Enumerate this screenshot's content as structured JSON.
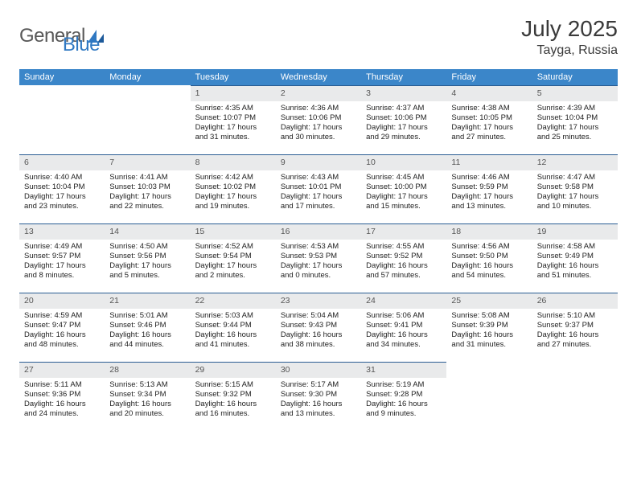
{
  "brand": {
    "name1": "General",
    "name2": "Blue"
  },
  "title": {
    "month": "July 2025",
    "location": "Tayga, Russia"
  },
  "colors": {
    "header_bg": "#3b86c9",
    "header_text": "#ffffff",
    "daynum_bg": "#e9eaeb",
    "rule": "#2a5d93",
    "brand_gray": "#585858",
    "brand_blue": "#2f78c2"
  },
  "weekdays": [
    "Sunday",
    "Monday",
    "Tuesday",
    "Wednesday",
    "Thursday",
    "Friday",
    "Saturday"
  ],
  "weeks": [
    [
      null,
      null,
      {
        "n": "1",
        "sr": "Sunrise: 4:35 AM",
        "ss": "Sunset: 10:07 PM",
        "dl": "Daylight: 17 hours and 31 minutes."
      },
      {
        "n": "2",
        "sr": "Sunrise: 4:36 AM",
        "ss": "Sunset: 10:06 PM",
        "dl": "Daylight: 17 hours and 30 minutes."
      },
      {
        "n": "3",
        "sr": "Sunrise: 4:37 AM",
        "ss": "Sunset: 10:06 PM",
        "dl": "Daylight: 17 hours and 29 minutes."
      },
      {
        "n": "4",
        "sr": "Sunrise: 4:38 AM",
        "ss": "Sunset: 10:05 PM",
        "dl": "Daylight: 17 hours and 27 minutes."
      },
      {
        "n": "5",
        "sr": "Sunrise: 4:39 AM",
        "ss": "Sunset: 10:04 PM",
        "dl": "Daylight: 17 hours and 25 minutes."
      }
    ],
    [
      {
        "n": "6",
        "sr": "Sunrise: 4:40 AM",
        "ss": "Sunset: 10:04 PM",
        "dl": "Daylight: 17 hours and 23 minutes."
      },
      {
        "n": "7",
        "sr": "Sunrise: 4:41 AM",
        "ss": "Sunset: 10:03 PM",
        "dl": "Daylight: 17 hours and 22 minutes."
      },
      {
        "n": "8",
        "sr": "Sunrise: 4:42 AM",
        "ss": "Sunset: 10:02 PM",
        "dl": "Daylight: 17 hours and 19 minutes."
      },
      {
        "n": "9",
        "sr": "Sunrise: 4:43 AM",
        "ss": "Sunset: 10:01 PM",
        "dl": "Daylight: 17 hours and 17 minutes."
      },
      {
        "n": "10",
        "sr": "Sunrise: 4:45 AM",
        "ss": "Sunset: 10:00 PM",
        "dl": "Daylight: 17 hours and 15 minutes."
      },
      {
        "n": "11",
        "sr": "Sunrise: 4:46 AM",
        "ss": "Sunset: 9:59 PM",
        "dl": "Daylight: 17 hours and 13 minutes."
      },
      {
        "n": "12",
        "sr": "Sunrise: 4:47 AM",
        "ss": "Sunset: 9:58 PM",
        "dl": "Daylight: 17 hours and 10 minutes."
      }
    ],
    [
      {
        "n": "13",
        "sr": "Sunrise: 4:49 AM",
        "ss": "Sunset: 9:57 PM",
        "dl": "Daylight: 17 hours and 8 minutes."
      },
      {
        "n": "14",
        "sr": "Sunrise: 4:50 AM",
        "ss": "Sunset: 9:56 PM",
        "dl": "Daylight: 17 hours and 5 minutes."
      },
      {
        "n": "15",
        "sr": "Sunrise: 4:52 AM",
        "ss": "Sunset: 9:54 PM",
        "dl": "Daylight: 17 hours and 2 minutes."
      },
      {
        "n": "16",
        "sr": "Sunrise: 4:53 AM",
        "ss": "Sunset: 9:53 PM",
        "dl": "Daylight: 17 hours and 0 minutes."
      },
      {
        "n": "17",
        "sr": "Sunrise: 4:55 AM",
        "ss": "Sunset: 9:52 PM",
        "dl": "Daylight: 16 hours and 57 minutes."
      },
      {
        "n": "18",
        "sr": "Sunrise: 4:56 AM",
        "ss": "Sunset: 9:50 PM",
        "dl": "Daylight: 16 hours and 54 minutes."
      },
      {
        "n": "19",
        "sr": "Sunrise: 4:58 AM",
        "ss": "Sunset: 9:49 PM",
        "dl": "Daylight: 16 hours and 51 minutes."
      }
    ],
    [
      {
        "n": "20",
        "sr": "Sunrise: 4:59 AM",
        "ss": "Sunset: 9:47 PM",
        "dl": "Daylight: 16 hours and 48 minutes."
      },
      {
        "n": "21",
        "sr": "Sunrise: 5:01 AM",
        "ss": "Sunset: 9:46 PM",
        "dl": "Daylight: 16 hours and 44 minutes."
      },
      {
        "n": "22",
        "sr": "Sunrise: 5:03 AM",
        "ss": "Sunset: 9:44 PM",
        "dl": "Daylight: 16 hours and 41 minutes."
      },
      {
        "n": "23",
        "sr": "Sunrise: 5:04 AM",
        "ss": "Sunset: 9:43 PM",
        "dl": "Daylight: 16 hours and 38 minutes."
      },
      {
        "n": "24",
        "sr": "Sunrise: 5:06 AM",
        "ss": "Sunset: 9:41 PM",
        "dl": "Daylight: 16 hours and 34 minutes."
      },
      {
        "n": "25",
        "sr": "Sunrise: 5:08 AM",
        "ss": "Sunset: 9:39 PM",
        "dl": "Daylight: 16 hours and 31 minutes."
      },
      {
        "n": "26",
        "sr": "Sunrise: 5:10 AM",
        "ss": "Sunset: 9:37 PM",
        "dl": "Daylight: 16 hours and 27 minutes."
      }
    ],
    [
      {
        "n": "27",
        "sr": "Sunrise: 5:11 AM",
        "ss": "Sunset: 9:36 PM",
        "dl": "Daylight: 16 hours and 24 minutes."
      },
      {
        "n": "28",
        "sr": "Sunrise: 5:13 AM",
        "ss": "Sunset: 9:34 PM",
        "dl": "Daylight: 16 hours and 20 minutes."
      },
      {
        "n": "29",
        "sr": "Sunrise: 5:15 AM",
        "ss": "Sunset: 9:32 PM",
        "dl": "Daylight: 16 hours and 16 minutes."
      },
      {
        "n": "30",
        "sr": "Sunrise: 5:17 AM",
        "ss": "Sunset: 9:30 PM",
        "dl": "Daylight: 16 hours and 13 minutes."
      },
      {
        "n": "31",
        "sr": "Sunrise: 5:19 AM",
        "ss": "Sunset: 9:28 PM",
        "dl": "Daylight: 16 hours and 9 minutes."
      },
      null,
      null
    ]
  ]
}
